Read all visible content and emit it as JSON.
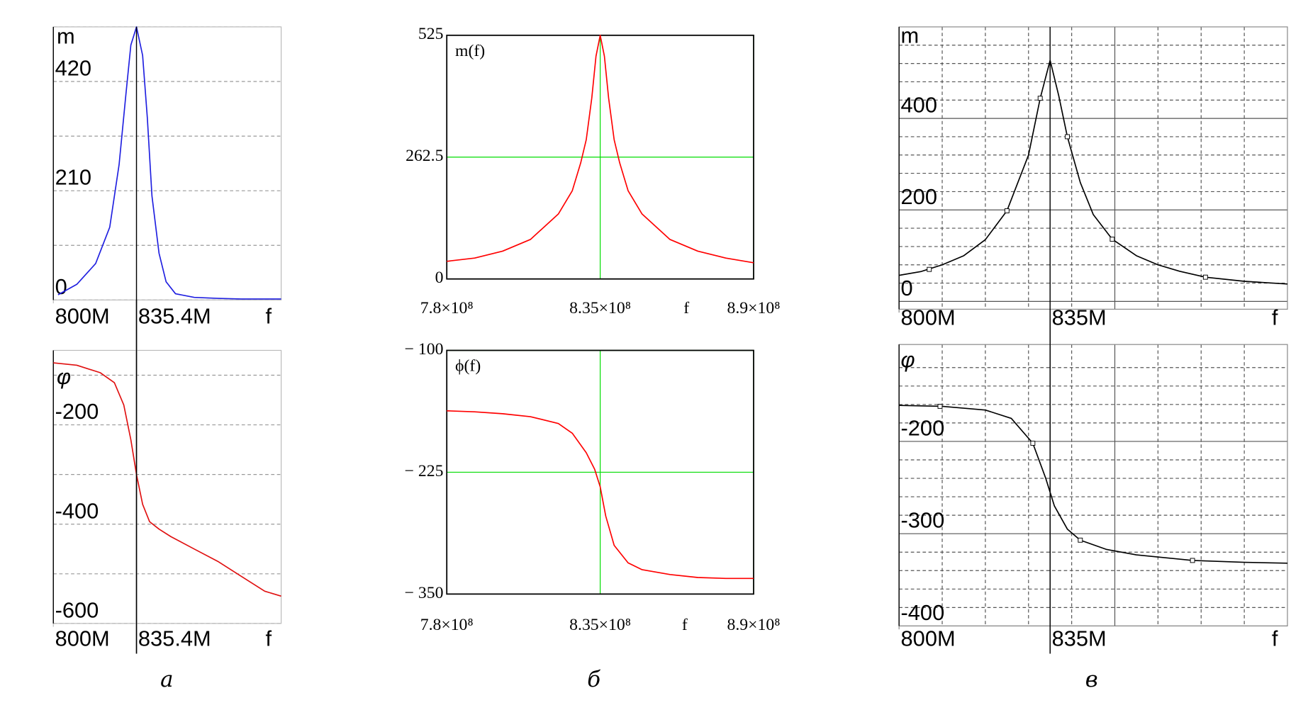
{
  "chart_data": [
    {
      "type": "line",
      "title": "m",
      "series": [
        {
          "color": "#1f1fe0",
          "x": [
            802,
            810,
            818,
            824,
            828,
            831,
            833,
            835.4,
            838,
            840,
            842,
            845,
            848,
            852,
            860,
            870,
            880,
            897
          ],
          "values": [
            10,
            30,
            70,
            140,
            260,
            400,
            490,
            525,
            470,
            350,
            200,
            90,
            35,
            12,
            5,
            3,
            2,
            2
          ]
        }
      ],
      "xlim": [
        800,
        897
      ],
      "xticks": [
        {
          "value": 800,
          "label": "800M"
        },
        {
          "value": 835.4,
          "label": "835.4M"
        }
      ],
      "xlabel": "f",
      "ylim": [
        0,
        525
      ],
      "yticks": [
        0,
        210,
        420
      ],
      "minor_yticks": [
        105,
        315,
        525
      ],
      "grid": {
        "color": "#999999",
        "dash": true
      },
      "minor_grid": {
        "color": "#999999",
        "dash": true
      },
      "x_grid": false,
      "frame_color": "#bbbbbb",
      "cursor_x": 835.4,
      "cursor_color": "#000000"
    },
    {
      "type": "line",
      "title": "φ",
      "series": [
        {
          "color": "#e01010",
          "x": [
            800,
            810,
            820,
            826,
            830,
            833,
            835.4,
            838,
            841,
            845,
            850,
            860,
            870,
            880,
            890,
            897
          ],
          "values": [
            -75,
            -80,
            -95,
            -115,
            -160,
            -230,
            -300,
            -360,
            -395,
            -410,
            -425,
            -450,
            -475,
            -505,
            -535,
            -545
          ]
        }
      ],
      "xlim": [
        800,
        897
      ],
      "xticks": [
        {
          "value": 800,
          "label": "800M"
        },
        {
          "value": 835.4,
          "label": "835.4M"
        }
      ],
      "xlabel": "f",
      "ylim": [
        -600,
        -50
      ],
      "yticks": [
        -600,
        -400,
        -200
      ],
      "minor_yticks": [
        -500,
        -300,
        -100
      ],
      "grid": {
        "color": "#999999",
        "dash": true
      },
      "minor_grid": {
        "color": "#999999",
        "dash": true
      },
      "x_grid": false,
      "frame_color": "#bbbbbb",
      "cursor_x": 835.4,
      "cursor_color": "#000000"
    },
    {
      "type": "line",
      "title": "m(f)",
      "series": [
        {
          "color": "#ff0000",
          "x": [
            780000000,
            790000000,
            800000000,
            810000000,
            820000000,
            825000000,
            828000000,
            830000000,
            832000000,
            833500000,
            835000000,
            836500000,
            838000000,
            840000000,
            842000000,
            845000000,
            850000000,
            860000000,
            870000000,
            880000000,
            890000000
          ],
          "values": [
            38,
            45,
            60,
            85,
            140,
            190,
            250,
            300,
            390,
            480,
            525,
            480,
            390,
            300,
            250,
            190,
            140,
            85,
            60,
            45,
            35
          ]
        }
      ],
      "xlim": [
        780000000,
        890000000
      ],
      "xticks": [
        {
          "value": 780000000,
          "label": "7.8×10⁸"
        },
        {
          "value": 835000000,
          "label": "8.35×10⁸"
        },
        {
          "value": 890000000,
          "label": "8.9×10⁸"
        }
      ],
      "xlabel": "f",
      "ylim": [
        0,
        525
      ],
      "yticks": [
        0,
        262.5,
        525
      ],
      "grid": {
        "color": "#00dd00",
        "dash": false
      },
      "x_grid": true,
      "frame_color": "#000000"
    },
    {
      "type": "line",
      "title": "ϕ(f)",
      "series": [
        {
          "color": "#ff0000",
          "x": [
            780000000,
            790000000,
            800000000,
            810000000,
            820000000,
            825000000,
            830000000,
            833000000,
            835000000,
            837000000,
            840000000,
            845000000,
            850000000,
            860000000,
            870000000,
            880000000,
            890000000
          ],
          "values": [
            -162,
            -163,
            -165,
            -168,
            -175,
            -185,
            -205,
            -222,
            -240,
            -270,
            -300,
            -318,
            -325,
            -330,
            -333,
            -334,
            -334
          ]
        }
      ],
      "xlim": [
        780000000,
        890000000
      ],
      "xticks": [
        {
          "value": 780000000,
          "label": "7.8×10⁸"
        },
        {
          "value": 835000000,
          "label": "8.35×10⁸"
        },
        {
          "value": 890000000,
          "label": "8.9×10⁸"
        }
      ],
      "xlabel": "f",
      "ylim": [
        -350,
        -100
      ],
      "yticks": [
        {
          "value": -350,
          "label": "− 350"
        },
        {
          "value": -225,
          "label": "− 225"
        },
        {
          "value": -100,
          "label": "− 100"
        }
      ],
      "grid": {
        "color": "#00dd00",
        "dash": false
      },
      "x_grid": true,
      "frame_color": "#000000"
    },
    {
      "type": "line",
      "title": "m",
      "series": [
        {
          "color": "#000000",
          "x": [
            800,
            805,
            810,
            815,
            820,
            825,
            830,
            832.7,
            835,
            837,
            839,
            842,
            845,
            849.4,
            855,
            860,
            865,
            871,
            880,
            890
          ],
          "values": [
            57,
            65,
            80,
            100,
            135,
            198,
            320,
            444,
            527,
            450,
            360,
            260,
            190,
            136,
            100,
            80,
            66,
            53,
            44,
            38
          ]
        },
        {
          "color": "#000000",
          "markers": true,
          "x": [
            807,
            825,
            832.7,
            839,
            849.4,
            871
          ],
          "values": [
            70,
            198,
            444,
            360,
            136,
            53
          ]
        }
      ],
      "xlim": [
        800,
        890
      ],
      "xticks": [
        {
          "value": 800,
          "label": "800M"
        },
        {
          "value": 835,
          "label": "835M"
        }
      ],
      "xlabel": "f",
      "major_xgrid": [
        850
      ],
      "minor_xticks": [
        810,
        820,
        830,
        840,
        860,
        870,
        880
      ],
      "ylim": [
        -17,
        600
      ],
      "yticks": [
        0,
        200,
        400
      ],
      "minor_yticks": [
        40,
        80,
        120,
        160,
        240,
        280,
        320,
        360,
        440,
        480,
        520,
        560
      ],
      "grid": {
        "color": "#555555",
        "dash": false
      },
      "minor_grid": {
        "color": "#555555",
        "dash": true
      },
      "x_grid": false,
      "frame_color": "#888888",
      "cursor_x": 835,
      "cursor_color": "#000000"
    },
    {
      "type": "line",
      "title": "φ",
      "series": [
        {
          "color": "#000000",
          "x": [
            800,
            810,
            820,
            826,
            831,
            834,
            836,
            839,
            842,
            848,
            855,
            868,
            880,
            890
          ],
          "values": [
            -161,
            -162,
            -166,
            -175,
            -202,
            -240,
            -270,
            -295,
            -307,
            -317,
            -323,
            -329,
            -331,
            -332
          ]
        },
        {
          "color": "#000000",
          "markers": true,
          "x": [
            809.5,
            831,
            842,
            868
          ],
          "values": [
            -162,
            -202,
            -307,
            -329
          ]
        }
      ],
      "xlim": [
        800,
        890
      ],
      "xticks": [
        {
          "value": 800,
          "label": "800M"
        },
        {
          "value": 835,
          "label": "835M"
        }
      ],
      "xlabel": "f",
      "major_xgrid": [
        850
      ],
      "minor_xticks": [
        810,
        820,
        830,
        840,
        860,
        870,
        880
      ],
      "ylim": [
        -400,
        -95
      ],
      "yticks": [
        -400,
        -300,
        -200
      ],
      "minor_yticks": [
        -120,
        -140,
        -160,
        -180,
        -220,
        -240,
        -260,
        -280,
        -320,
        -340,
        -360,
        -380
      ],
      "grid": {
        "color": "#555555",
        "dash": false
      },
      "minor_grid": {
        "color": "#555555",
        "dash": true
      },
      "x_grid": false,
      "frame_color": "#888888",
      "cursor_x": 835,
      "cursor_color": "#000000"
    }
  ],
  "captions": [
    "а",
    "б",
    "в"
  ]
}
